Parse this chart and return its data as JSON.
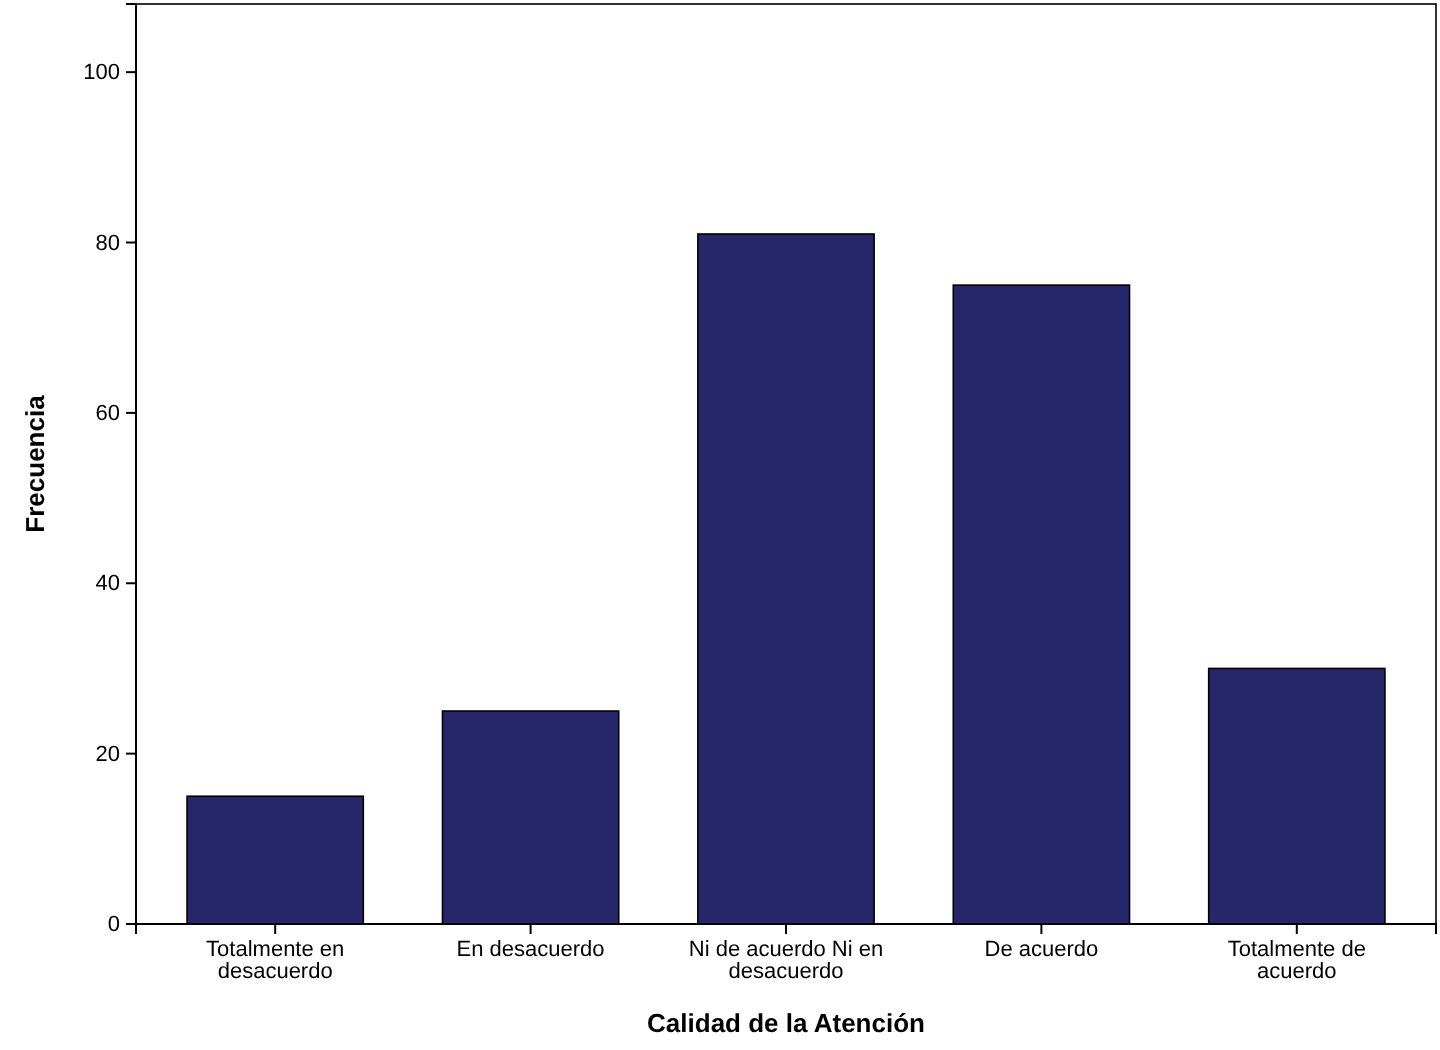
{
  "chart_data": {
    "type": "bar",
    "xlabel": "Calidad de la Atención",
    "ylabel": "Frecuencia",
    "categories": [
      "Totalmente en desacuerdo",
      "En desacuerdo",
      "Ni de acuerdo Ni en desacuerdo",
      "De acuerdo",
      "Totalmente de acuerdo"
    ],
    "values": [
      15,
      25,
      81,
      75,
      30
    ],
    "color": "#26276b",
    "ylim": [
      0,
      108
    ],
    "yticks": [
      0,
      20,
      40,
      60,
      80,
      100
    ],
    "grid": false
  }
}
